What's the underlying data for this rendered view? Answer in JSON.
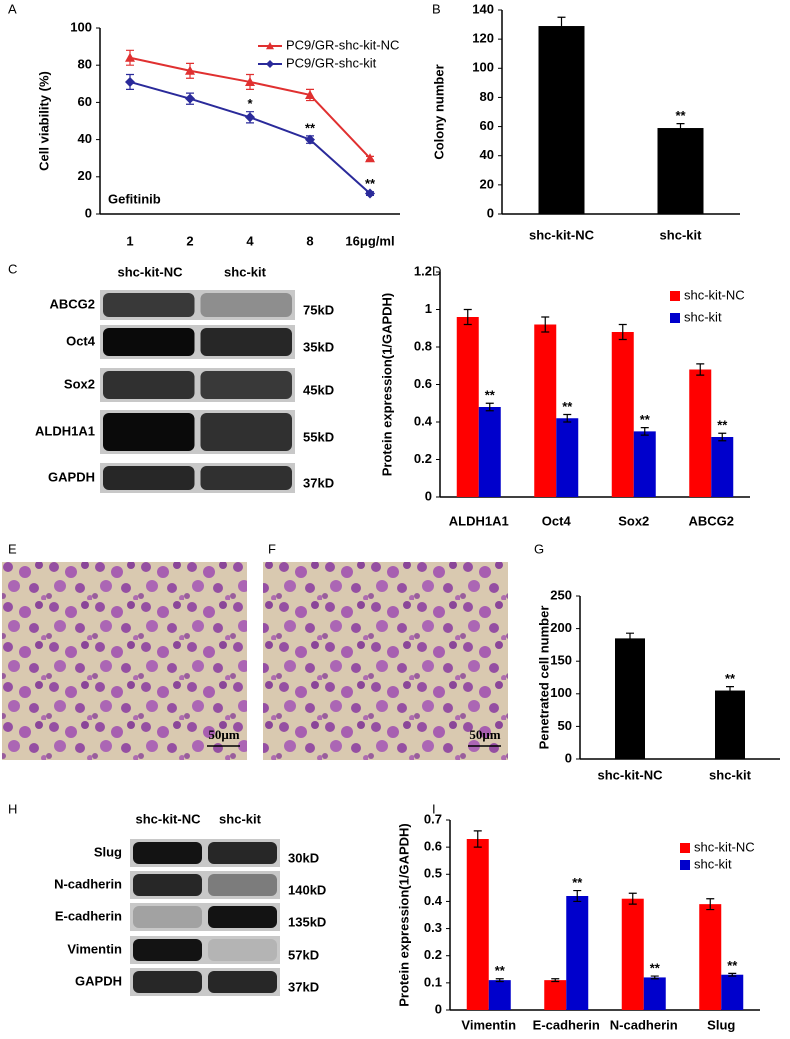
{
  "chart_data": [
    {
      "type": "line",
      "panel": "A",
      "ylabel": "Cell viability (%)",
      "note": "Gefitinib",
      "categories": [
        "1",
        "2",
        "4",
        "8",
        "16μg/ml"
      ],
      "series": [
        {
          "name": "PC9/GR-shc-kit-NC",
          "color": "#e03030",
          "marker": "triangle",
          "values": [
            84,
            77,
            71,
            64,
            30
          ],
          "errors": [
            4,
            4,
            4,
            3,
            1
          ]
        },
        {
          "name": "PC9/GR-shc-kit",
          "color": "#2a2a9a",
          "marker": "diamond",
          "values": [
            71,
            62,
            52,
            40,
            11
          ],
          "errors": [
            4,
            3,
            3,
            2,
            1
          ],
          "significance": [
            null,
            null,
            "*",
            "**",
            "**"
          ]
        }
      ],
      "ylim": [
        0,
        100
      ],
      "yticks": [
        0,
        20,
        40,
        60,
        80,
        100
      ],
      "legend": "top-right"
    },
    {
      "type": "bar",
      "panel": "B",
      "ylabel": "Colony number",
      "categories": [
        "shc-kit-NC",
        "shc-kit"
      ],
      "values": [
        129,
        59
      ],
      "errors": [
        6,
        3
      ],
      "significance": [
        null,
        "**"
      ],
      "color": "#000000",
      "ylim": [
        0,
        140
      ],
      "yticks": [
        0,
        20,
        40,
        60,
        80,
        100,
        120,
        140
      ]
    },
    {
      "type": "bar",
      "panel": "D",
      "ylabel": "Protein expression(1/GAPDH)",
      "categories": [
        "ALDH1A1",
        "Oct4",
        "Sox2",
        "ABCG2"
      ],
      "series": [
        {
          "name": "shc-kit-NC",
          "color": "#ff0000",
          "values": [
            0.96,
            0.92,
            0.88,
            0.68
          ],
          "errors": [
            0.04,
            0.04,
            0.04,
            0.03
          ]
        },
        {
          "name": "shc-kit",
          "color": "#0000cc",
          "values": [
            0.48,
            0.42,
            0.35,
            0.32
          ],
          "errors": [
            0.02,
            0.02,
            0.02,
            0.02
          ],
          "significance": [
            "**",
            "**",
            "**",
            "**"
          ]
        }
      ],
      "ylim": [
        0,
        1.2
      ],
      "yticks": [
        0,
        0.2,
        0.4,
        0.6,
        0.8,
        1,
        1.2
      ],
      "legend": "top-right"
    },
    {
      "type": "bar",
      "panel": "G",
      "ylabel": "Penetrated cell number",
      "categories": [
        "shc-kit-NC",
        "shc-kit"
      ],
      "values": [
        185,
        105
      ],
      "errors": [
        8,
        6
      ],
      "significance": [
        null,
        "**"
      ],
      "color": "#000000",
      "ylim": [
        0,
        250
      ],
      "yticks": [
        0,
        50,
        100,
        150,
        200,
        250
      ]
    },
    {
      "type": "bar",
      "panel": "I",
      "ylabel": "Protein expression(1/GAPDH)",
      "categories": [
        "Vimentin",
        "E-cadherin",
        "N-cadherin",
        "Slug"
      ],
      "series": [
        {
          "name": "shc-kit-NC",
          "color": "#ff0000",
          "values": [
            0.63,
            0.11,
            0.41,
            0.39
          ],
          "errors": [
            0.03,
            0.005,
            0.02,
            0.02
          ]
        },
        {
          "name": "shc-kit",
          "color": "#0000cc",
          "values": [
            0.11,
            0.42,
            0.12,
            0.13
          ],
          "errors": [
            0.005,
            0.02,
            0.005,
            0.005
          ],
          "significance": [
            "**",
            "**",
            "**",
            "**"
          ]
        }
      ],
      "ylim": [
        0,
        0.7
      ],
      "yticks": [
        0,
        0.1,
        0.2,
        0.3,
        0.4,
        0.5,
        0.6,
        0.7
      ],
      "legend": "top-right"
    }
  ],
  "blots": [
    {
      "panel": "C",
      "lanes": [
        "shc-kit-NC",
        "shc-kit"
      ],
      "rows": [
        {
          "name": "ABCG2",
          "size": "75kD"
        },
        {
          "name": "Oct4",
          "size": "35kD"
        },
        {
          "name": "Sox2",
          "size": "45kD"
        },
        {
          "name": "ALDH1A1",
          "size": "55kD"
        },
        {
          "name": "GAPDH",
          "size": "37kD"
        }
      ]
    },
    {
      "panel": "H",
      "lanes": [
        "shc-kit-NC",
        "shc-kit"
      ],
      "rows": [
        {
          "name": "Slug",
          "size": "30kD"
        },
        {
          "name": "N-cadherin",
          "size": "140kD"
        },
        {
          "name": "E-cadherin",
          "size": "135kD"
        },
        {
          "name": "Vimentin",
          "size": "57kD"
        },
        {
          "name": "GAPDH",
          "size": "37kD"
        }
      ]
    }
  ],
  "micrographs": [
    {
      "panel": "E",
      "scale": "50μm"
    },
    {
      "panel": "F",
      "scale": "50μm"
    }
  ]
}
